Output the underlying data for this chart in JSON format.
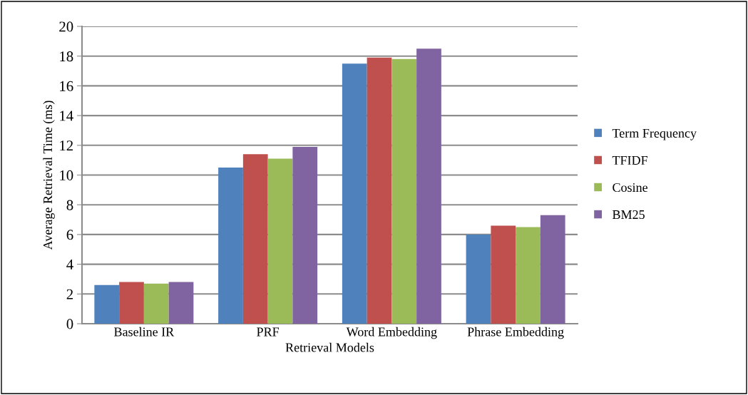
{
  "chart_data": {
    "type": "bar",
    "xlabel": "Retrieval Models",
    "ylabel": "Average Retrieval Time (ms)",
    "categories": [
      "Baseline IR",
      "PRF",
      "Word Embedding",
      "Phrase Embedding"
    ],
    "series": [
      {
        "name": "Term Frequency",
        "color": "#4f81bd",
        "values": [
          2.6,
          10.5,
          17.5,
          6.0
        ]
      },
      {
        "name": "TFIDF",
        "color": "#c0504d",
        "values": [
          2.8,
          11.4,
          17.9,
          6.6
        ]
      },
      {
        "name": "Cosine",
        "color": "#9bbb59",
        "values": [
          2.7,
          11.1,
          17.8,
          6.5
        ]
      },
      {
        "name": "BM25",
        "color": "#8064a2",
        "values": [
          2.8,
          11.9,
          18.5,
          7.3
        ]
      }
    ],
    "ylim": [
      0,
      20
    ],
    "yticks": [
      0,
      2,
      4,
      6,
      8,
      10,
      12,
      14,
      16,
      18,
      20
    ],
    "grid": "y",
    "legend": "right"
  }
}
